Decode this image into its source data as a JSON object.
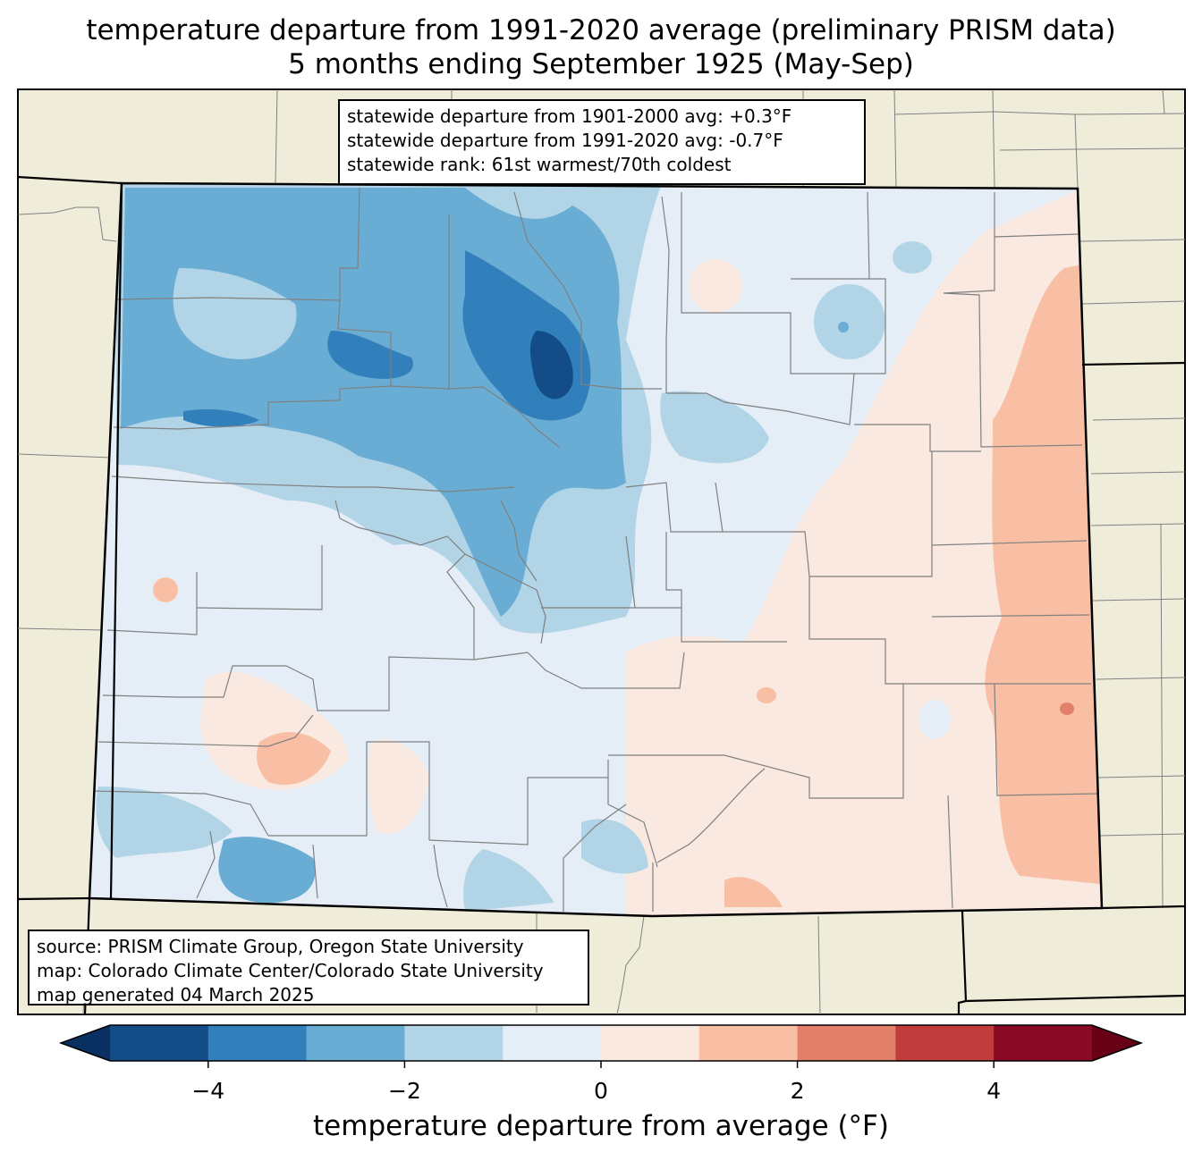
{
  "title": {
    "line1": "temperature departure from 1991-2020 average (preliminary PRISM data)",
    "line2": "5 months ending September 1925 (May-Sep)"
  },
  "stats": {
    "line1": "statewide departure from 1901-2000 avg: +0.3°F",
    "line2": "statewide departure from 1991-2020 avg: -0.7°F",
    "line3": "statewide rank: 61st warmest/70th coldest"
  },
  "source": {
    "line1": "source: PRISM Climate Group, Oregon State University",
    "line2": "map: Colorado Climate Center/Colorado State University",
    "line3": "map generated 04 March 2025"
  },
  "colorbar": {
    "label": "temperature departure from average (°F)",
    "range": [
      -5,
      5
    ],
    "ticks": [
      -4,
      -2,
      0,
      2,
      4
    ],
    "tick_labels": [
      "−4",
      "−2",
      "0",
      "2",
      "4"
    ],
    "bins": [
      {
        "from": -5,
        "to": -4,
        "color": "#144c87"
      },
      {
        "from": -4,
        "to": -3,
        "color": "#3280bb"
      },
      {
        "from": -3,
        "to": -2,
        "color": "#6aadd4"
      },
      {
        "from": -2,
        "to": -1,
        "color": "#b1d4e7"
      },
      {
        "from": -1,
        "to": 0,
        "color": "#e5eef6"
      },
      {
        "from": 0,
        "to": 1,
        "color": "#f9e9e0"
      },
      {
        "from": 1,
        "to": 2,
        "color": "#f8bfa4"
      },
      {
        "from": 2,
        "to": 3,
        "color": "#e3806a"
      },
      {
        "from": 3,
        "to": 4,
        "color": "#c13c3c"
      },
      {
        "from": 4,
        "to": 5,
        "color": "#880a24"
      }
    ],
    "under_color": "#0a3061",
    "over_color": "#670116"
  },
  "map_colors": {
    "land": "#efedda",
    "state_border": "#000000",
    "county_border": "#808080"
  }
}
